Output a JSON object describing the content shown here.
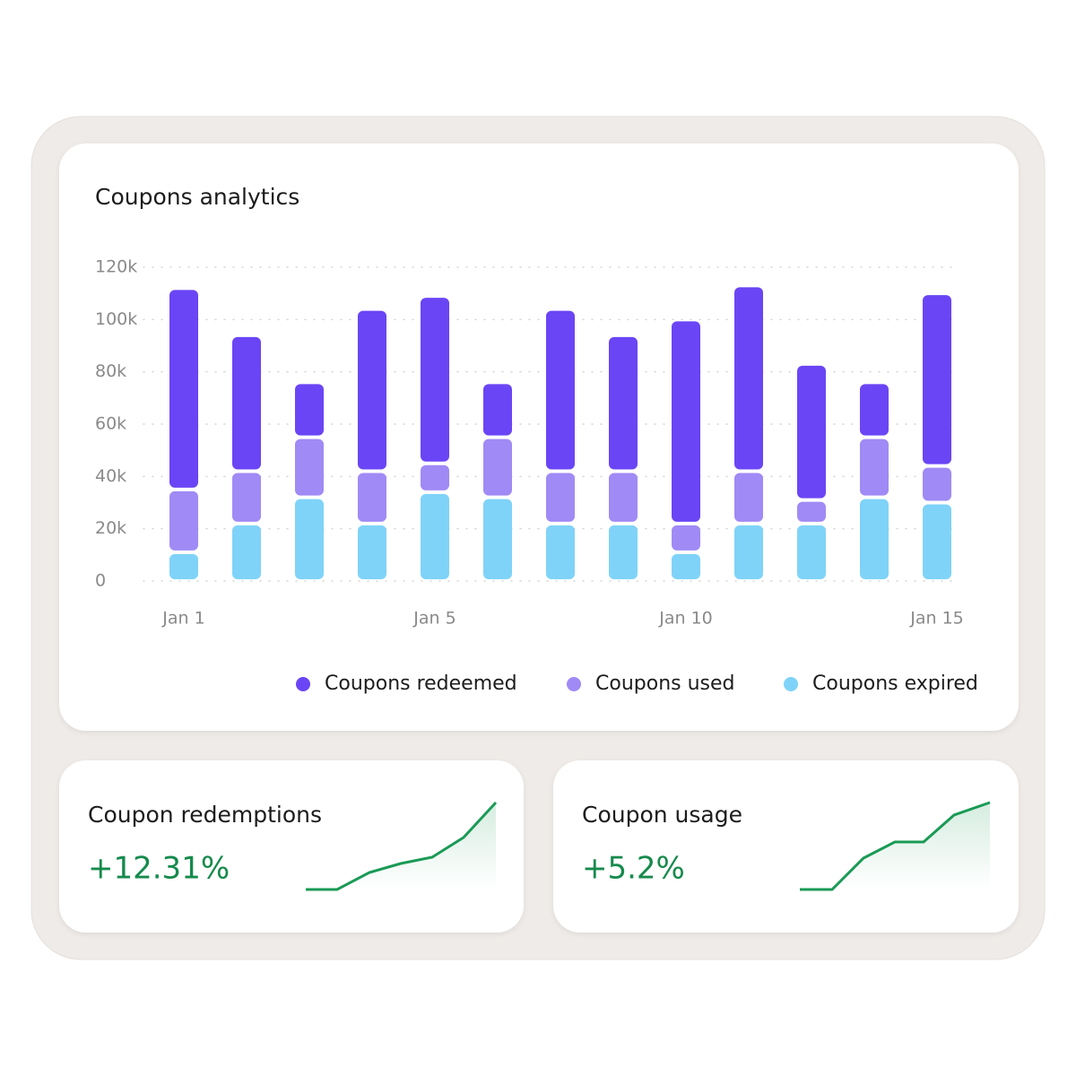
{
  "chart_data": {
    "type": "stacked_bar",
    "title": "Coupons analytics",
    "categories": [
      "Jan 1",
      null,
      null,
      null,
      "Jan 5",
      null,
      null,
      null,
      "Jan 10",
      null,
      null,
      null,
      "Jan 15"
    ],
    "series": [
      {
        "name": "Coupons expired",
        "color": "#7fd3f8",
        "values": [
          11000,
          22000,
          32000,
          22000,
          34000,
          32000,
          22000,
          22000,
          11000,
          22000,
          22000,
          32000,
          30000
        ]
      },
      {
        "name": "Coupons used",
        "color": "#a08af5",
        "values": [
          24000,
          20000,
          23000,
          20000,
          11000,
          23000,
          20000,
          20000,
          11000,
          20000,
          9000,
          23000,
          14000
        ]
      },
      {
        "name": "Coupons redeemed",
        "color": "#6a45f5",
        "values": [
          77000,
          52000,
          21000,
          62000,
          64000,
          21000,
          62000,
          52000,
          78000,
          71000,
          52000,
          21000,
          66000
        ]
      }
    ],
    "legend_order": [
      2,
      1,
      0
    ],
    "legend": "bottom-right",
    "ylim": [
      0,
      120000
    ],
    "yticks": [
      0,
      {
        "value": 20000,
        "label": "20k"
      },
      {
        "value": 40000,
        "label": "40k"
      },
      {
        "value": 60000,
        "label": "60k"
      },
      {
        "value": 80000,
        "label": "80k"
      },
      {
        "value": 100000,
        "label": "100k"
      },
      {
        "value": 120000,
        "label": "120k"
      }
    ],
    "grid": true
  },
  "cards": [
    {
      "title": "Coupon redemptions",
      "value": "+12.31%"
    },
    {
      "title": "Coupon usage",
      "value": "+5.2%"
    }
  ]
}
